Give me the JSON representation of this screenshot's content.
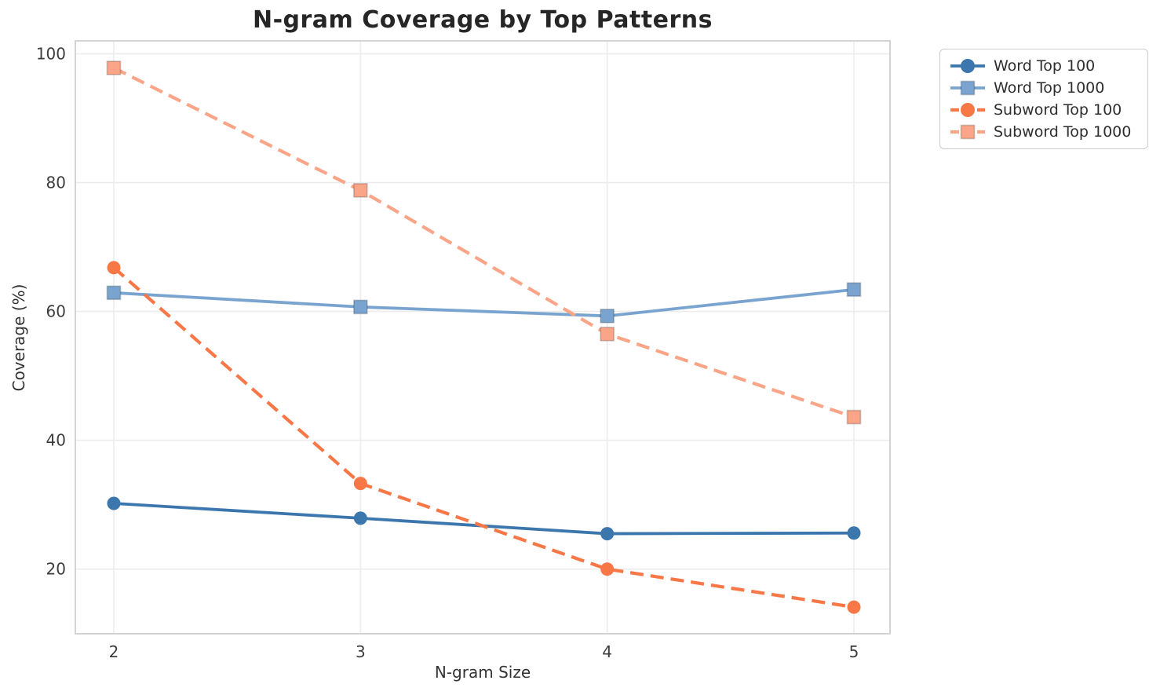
{
  "page": {
    "background": "#ffffff"
  },
  "chart_data": {
    "type": "line",
    "title": "N-gram Coverage by Top Patterns",
    "xlabel": "N-gram Size",
    "ylabel": "Coverage (%)",
    "x": [
      2,
      3,
      4,
      5
    ],
    "xtick_labels": [
      "2",
      "3",
      "4",
      "5"
    ],
    "ytick_values": [
      20,
      40,
      60,
      80,
      100
    ],
    "ytick_labels": [
      "20",
      "40",
      "60",
      "80",
      "100"
    ],
    "xlim": [
      1.84,
      5.14
    ],
    "ylim": [
      10,
      102.3
    ],
    "grid": true,
    "legend": {
      "position": "upper-right",
      "border_color": "#cccccc",
      "background": "#ffffff"
    },
    "axes": {
      "spine_color": "#d3d3d3",
      "grid_color": "#ececec",
      "tick_color": "#3d3d3d",
      "title_color": "#262626",
      "label_color": "#333333"
    },
    "series": [
      {
        "name": "Word Top 100",
        "marker": "circle",
        "line_style": "solid",
        "color": "#3b76ad",
        "values": [
          30.2,
          27.9,
          25.5,
          25.6
        ]
      },
      {
        "name": "Word Top 1000",
        "marker": "square",
        "line_style": "solid",
        "color": "#79a4cf",
        "values": [
          62.9,
          60.7,
          59.3,
          63.4
        ]
      },
      {
        "name": "Subword Top 100",
        "marker": "circle",
        "line_style": "dashed",
        "color": "#f87747",
        "values": [
          66.8,
          33.3,
          20.0,
          14.1
        ]
      },
      {
        "name": "Subword Top 1000",
        "marker": "square",
        "line_style": "dashed",
        "color": "#faa588",
        "values": [
          97.8,
          78.8,
          56.5,
          43.6
        ]
      }
    ]
  }
}
